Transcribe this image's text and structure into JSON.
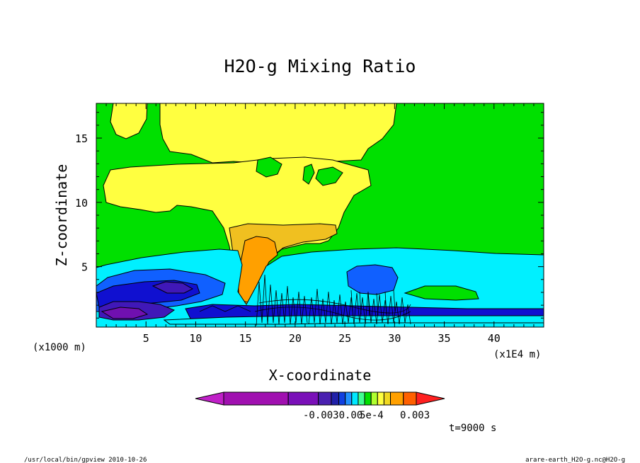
{
  "chart_data": {
    "type": "heatmap",
    "title": "H2O-g Mixing Ratio",
    "xlabel": "X-coordinate",
    "ylabel": "Z-coordinate",
    "x_unit_left": "(x1000 m)",
    "x_unit_right": "(x1E4 m)",
    "xlim": [
      0,
      45
    ],
    "ylim": [
      0.3,
      17.7
    ],
    "x_ticks": [
      "5",
      "10",
      "15",
      "20",
      "25",
      "30",
      "35",
      "40"
    ],
    "x_tick_values": [
      5,
      10,
      15,
      20,
      25,
      30,
      35,
      40
    ],
    "y_ticks": [
      "5",
      "10",
      "15"
    ],
    "y_tick_values": [
      5,
      10,
      15
    ],
    "colorbar": {
      "labels": [
        "-0.0030.00",
        "5e-4",
        "0.003"
      ],
      "colors": [
        "#c020c8",
        "#a010b0",
        "#7a10b8",
        "#4a20b0",
        "#2020a8",
        "#1040e0",
        "#2090ff",
        "#00e8ff",
        "#40ff90",
        "#00e000",
        "#b0ff30",
        "#ffff40",
        "#f0d820",
        "#ffa000",
        "#ff6000",
        "#ff2020"
      ]
    },
    "time_label": "t=9000 s",
    "palette": {
      "green": "#00e000",
      "yellow": "#ffff40",
      "gold": "#f0c020",
      "orange": "#ffa000",
      "cyan": "#00f0ff",
      "blue_light": "#1060ff",
      "blue": "#1010d0",
      "indigo": "#4018b8",
      "violet": "#7010b0"
    }
  },
  "footer": {
    "left": "/usr/local/bin/gpview  2010-10-26",
    "right": "arare-earth_H2O-g.nc@H2O-g"
  }
}
